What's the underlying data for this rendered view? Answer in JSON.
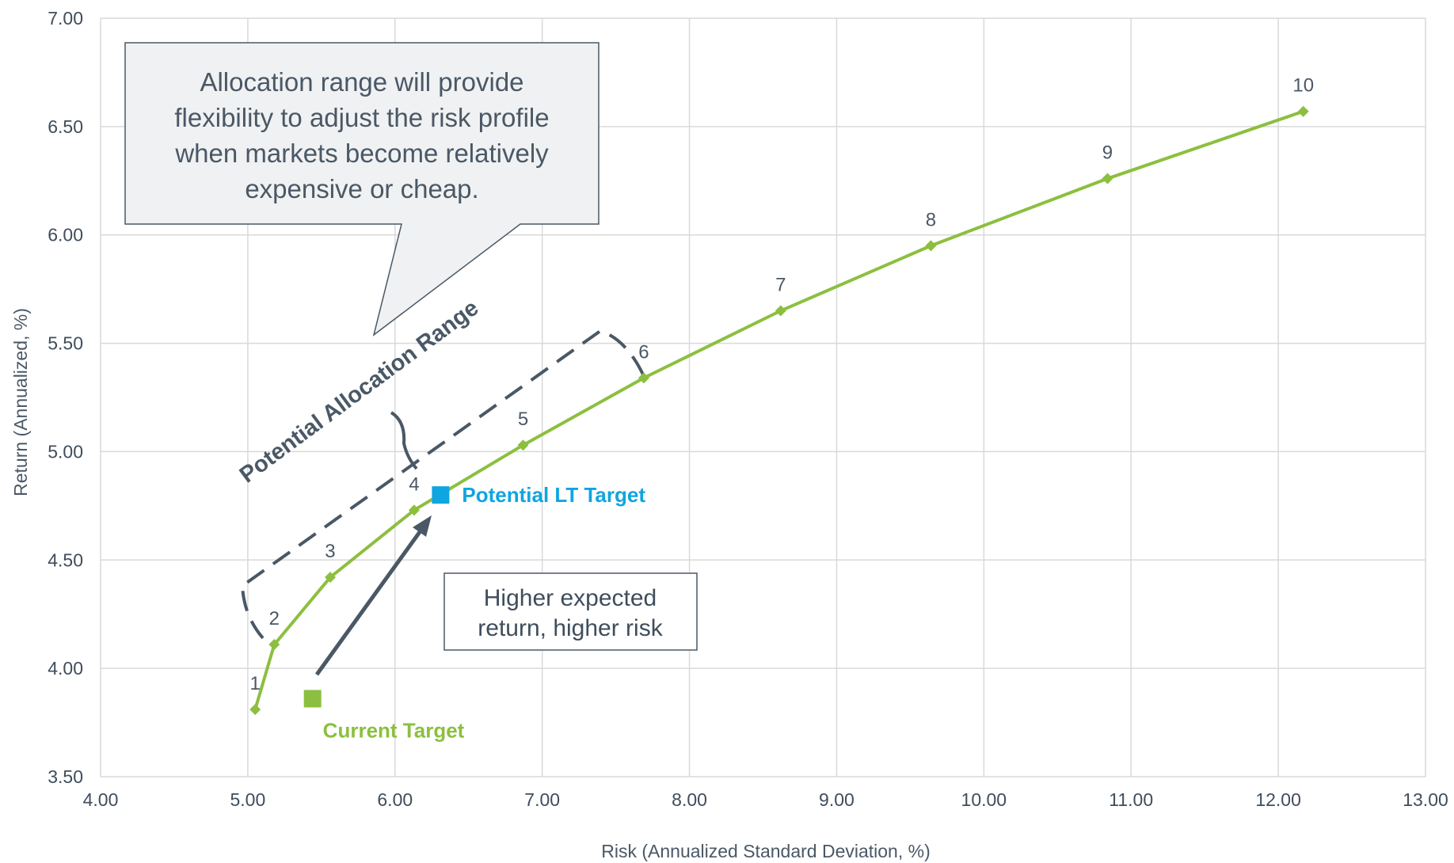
{
  "colors": {
    "series": "#8cbf3f",
    "lt_target": "#0fa5e0",
    "current_target": "#8cbf3f",
    "grid": "#d9d9d9",
    "annotation": "#4a5866",
    "callout_fill": "#f0f1f2"
  },
  "chart_data": {
    "type": "line",
    "xlabel": "Risk (Annualized Standard Deviation, %)",
    "ylabel": "Return (Annualized, %)",
    "xlim": [
      4.0,
      13.0
    ],
    "ylim": [
      3.5,
      7.0
    ],
    "x_ticks": [
      "4.00",
      "5.00",
      "6.00",
      "7.00",
      "8.00",
      "9.00",
      "10.00",
      "11.00",
      "12.00",
      "13.00"
    ],
    "y_ticks": [
      "3.50",
      "4.00",
      "4.50",
      "5.00",
      "5.50",
      "6.00",
      "6.50",
      "7.00"
    ],
    "grid": true,
    "series": [
      {
        "points": [
          {
            "label": "1",
            "x": 5.05,
            "y": 3.81
          },
          {
            "label": "2",
            "x": 5.18,
            "y": 4.11
          },
          {
            "label": "3",
            "x": 5.56,
            "y": 4.42
          },
          {
            "label": "4",
            "x": 6.13,
            "y": 4.73
          },
          {
            "label": "5",
            "x": 6.87,
            "y": 5.03
          },
          {
            "label": "6",
            "x": 7.69,
            "y": 5.34
          },
          {
            "label": "7",
            "x": 8.62,
            "y": 5.65
          },
          {
            "label": "8",
            "x": 9.64,
            "y": 5.95
          },
          {
            "label": "9",
            "x": 10.84,
            "y": 6.26
          },
          {
            "label": "10",
            "x": 12.17,
            "y": 6.57
          }
        ]
      }
    ],
    "markers": [
      {
        "label": "Potential LT Target",
        "x": 6.31,
        "y": 4.8
      },
      {
        "label": "Current Target",
        "x": 5.44,
        "y": 3.86
      }
    ],
    "annotations": {
      "callout_lines": [
        "Allocation range will provide",
        "flexibility to adjust the risk profile",
        "when markets become relatively",
        "expensive or cheap."
      ],
      "box_lines": [
        "Higher expected",
        "return, higher risk"
      ],
      "range_label": "Potential Allocation Range"
    }
  }
}
